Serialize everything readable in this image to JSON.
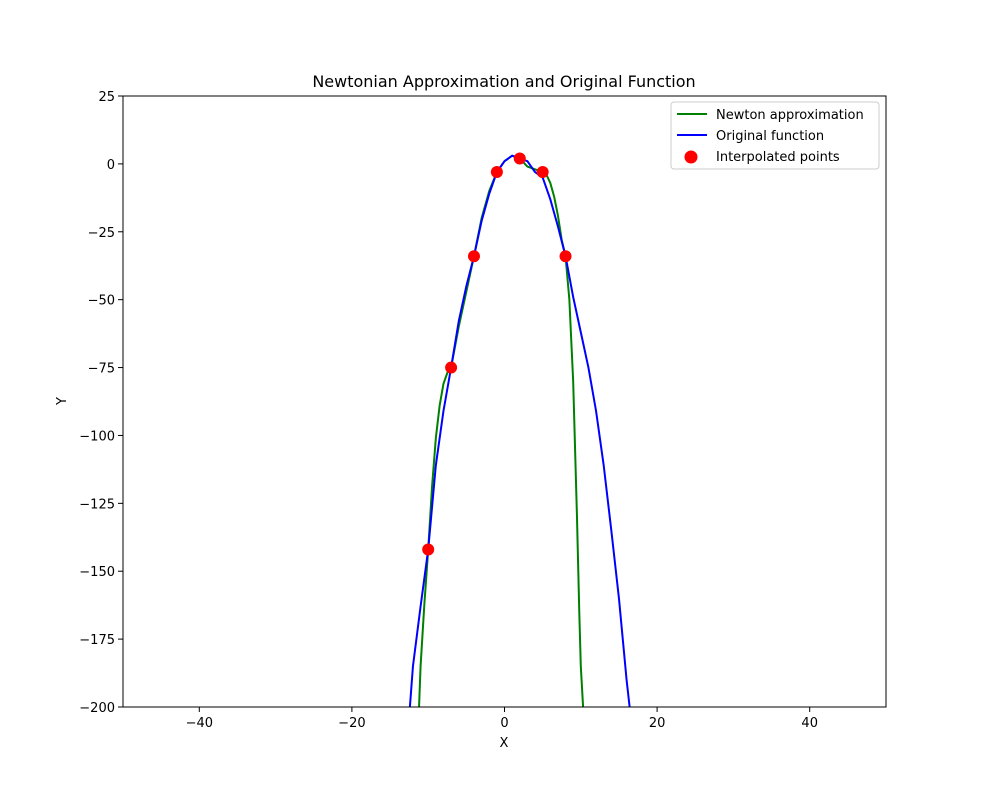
{
  "chart_data": {
    "type": "line",
    "title": "Newtonian Approximation and Original Function",
    "xlabel": "X",
    "ylabel": "Y",
    "xlim": [
      -50,
      50
    ],
    "ylim": [
      -200,
      25
    ],
    "xticks": [
      -40,
      -20,
      0,
      20,
      40
    ],
    "yticks": [
      25,
      0,
      -25,
      -50,
      -75,
      -100,
      -125,
      -150,
      -175,
      -200
    ],
    "xtick_labels": [
      "−40",
      "−20",
      "0",
      "20",
      "40"
    ],
    "ytick_labels": [
      "25",
      "0",
      "−25",
      "−50",
      "−75",
      "−100",
      "−125",
      "−150",
      "−175",
      "−200"
    ],
    "grid": false,
    "legend_position": "top-right",
    "series": [
      {
        "name": "Newton approximation",
        "type": "line",
        "color": "#008000",
        "x": [
          -11.2,
          -11.0,
          -10.5,
          -10.0,
          -9.5,
          -9.0,
          -8.5,
          -8.0,
          -7.5,
          -7.0,
          -6.0,
          -5.0,
          -4.0,
          -3.0,
          -2.0,
          -1.0,
          0.0,
          1.0,
          2.0,
          3.0,
          4.0,
          5.0,
          5.5,
          6.0,
          6.5,
          7.0,
          7.5,
          8.0,
          8.5,
          9.0,
          9.5,
          9.8,
          10.0,
          10.3
        ],
        "y": [
          -200,
          -185,
          -162,
          -142,
          -119,
          -101,
          -89,
          -81,
          -77,
          -75,
          -60,
          -47,
          -34,
          -20,
          -10,
          -3,
          1,
          3,
          2,
          -1,
          -2,
          -3,
          -4,
          -7,
          -12,
          -19,
          -28,
          -34,
          -50,
          -80,
          -130,
          -165,
          -185,
          -200
        ]
      },
      {
        "name": "Original function",
        "type": "line",
        "color": "#0000ff",
        "x": [
          -12.4,
          -12.0,
          -11.0,
          -10.0,
          -9.0,
          -8.0,
          -7.0,
          -6.0,
          -5.0,
          -4.0,
          -3.0,
          -2.0,
          -1.0,
          0.0,
          1.0,
          2.0,
          3.0,
          4.0,
          5.0,
          6.0,
          7.0,
          8.0,
          9.0,
          10.0,
          11.0,
          12.0,
          13.0,
          14.0,
          15.0,
          16.0,
          16.4
        ],
        "y": [
          -200,
          -185,
          -163,
          -142,
          -111,
          -91,
          -75,
          -58,
          -45,
          -34,
          -21,
          -11,
          -3,
          1,
          3,
          2,
          1,
          -3,
          -5,
          -13,
          -23,
          -34,
          -49,
          -62,
          -75,
          -91,
          -111,
          -135,
          -160,
          -190,
          -200
        ]
      },
      {
        "name": "Interpolated points",
        "type": "scatter",
        "color": "#ff0000",
        "x": [
          -10,
          -7,
          -4,
          -1,
          2,
          5,
          8
        ],
        "y": [
          -142,
          -75,
          -34,
          -3,
          2,
          -3,
          -34
        ]
      }
    ]
  }
}
